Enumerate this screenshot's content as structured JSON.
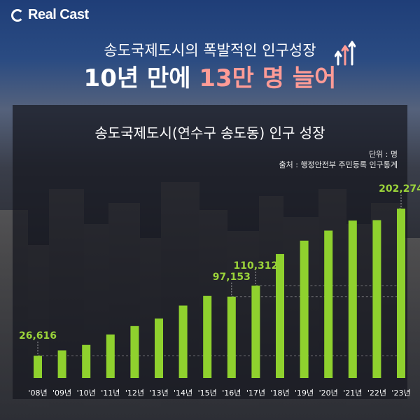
{
  "brand": {
    "name": "Real Cast"
  },
  "headline": {
    "subtitle": "송도국제도시의 폭발적인 인구성장",
    "main_prefix": "10년 만에 ",
    "main_highlight": "13만 명 늘어"
  },
  "chart_data": {
    "type": "bar",
    "title": "송도국제도시(연수구 송도동) 인구 성장",
    "unit": "단위 : 명",
    "source": "출처 : 행정안전부 주민등록 인구통계",
    "categories": [
      "'08년",
      "'09년",
      "'10년",
      "'11년",
      "'12년",
      "'13년",
      "'14년",
      "'15년",
      "'16년",
      "'17년",
      "'18년",
      "'19년",
      "'20년",
      "'21년",
      "'22년",
      "'23년"
    ],
    "values": [
      26616,
      33000,
      39500,
      52000,
      62000,
      71000,
      86500,
      98000,
      97153,
      110312,
      148000,
      164000,
      176000,
      188000,
      188500,
      202274
    ],
    "data_labels": [
      {
        "index": 0,
        "text": "26,616"
      },
      {
        "index": 8,
        "text": "97,153"
      },
      {
        "index": 9,
        "text": "110,312"
      },
      {
        "index": 15,
        "text": "202,274"
      }
    ],
    "bar_color": "#8fd12e",
    "label_color": "#9bd43a",
    "grid": "dashed",
    "xlabel": "",
    "ylabel": ""
  }
}
